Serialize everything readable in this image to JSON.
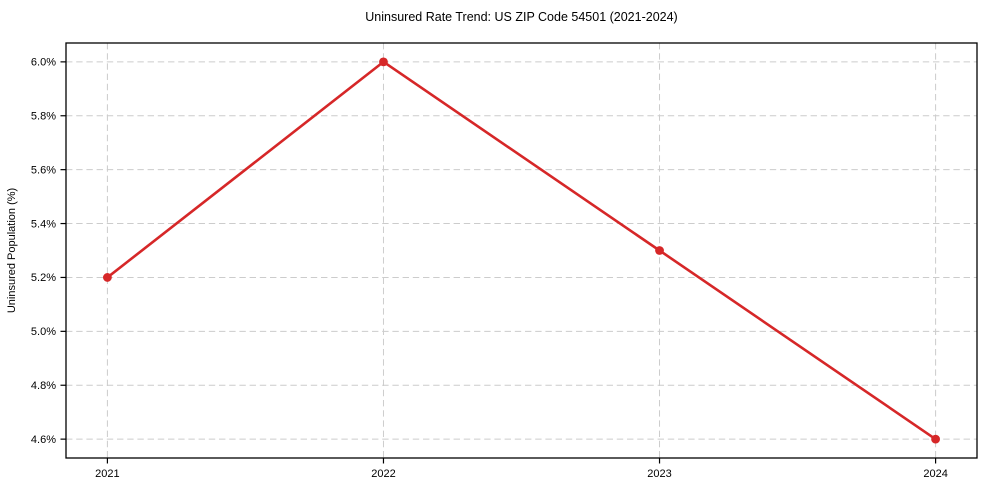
{
  "chart_data": {
    "type": "line",
    "title": "Uninsured Rate Trend: US ZIP Code 54501 (2021-2024)",
    "xlabel": "",
    "ylabel": "Uninsured Population (%)",
    "x": [
      2021,
      2022,
      2023,
      2024
    ],
    "x_tick_labels": [
      "2021",
      "2022",
      "2023",
      "2024"
    ],
    "values": [
      5.2,
      6.0,
      5.3,
      4.6
    ],
    "y_ticks": [
      4.6,
      4.8,
      5.0,
      5.2,
      5.4,
      5.6,
      5.8,
      6.0
    ],
    "y_tick_labels": [
      "4.6%",
      "4.8%",
      "5.0%",
      "5.2%",
      "5.4%",
      "5.6%",
      "5.8%",
      "6.0%"
    ],
    "xlim": [
      2020.85,
      2024.15
    ],
    "ylim": [
      4.53,
      6.07
    ],
    "grid": true,
    "legend_position": "none",
    "line_color": "#d62728",
    "marker": "circle",
    "marker_color": "#d62728",
    "grid_color": "#cccccc",
    "axis_color": "#000000",
    "text_color": "#000000",
    "background_color": "#ffffff"
  }
}
